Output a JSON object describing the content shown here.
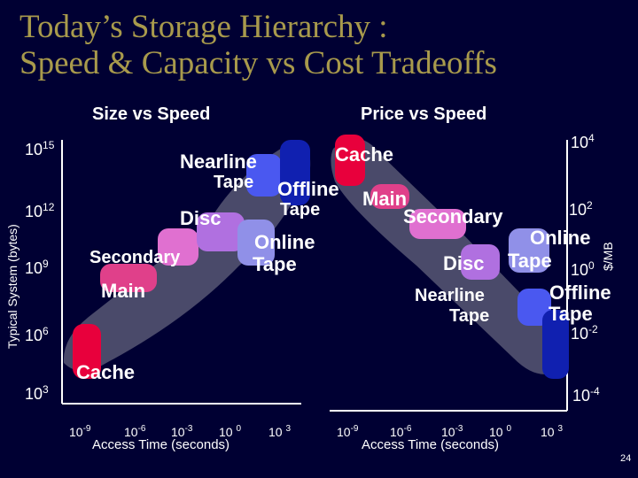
{
  "title": {
    "line1": "Today’s Storage Hierarchy :",
    "line2": "Speed & Capacity  vs Cost Tradeoffs"
  },
  "left_panel": {
    "subtitle": "Size vs Speed",
    "y_axis_label": "Typical System (bytes)",
    "y_ticks": [
      {
        "base": "10",
        "exp": "15"
      },
      {
        "base": "10",
        "exp": "12"
      },
      {
        "base": "10",
        "exp": "9"
      },
      {
        "base": "10",
        "exp": "6"
      },
      {
        "base": "10",
        "exp": "3"
      }
    ],
    "x_ticks": [
      {
        "base": "10",
        "exp": "-9"
      },
      {
        "base": "10",
        "exp": "-6"
      },
      {
        "base": "10",
        "exp": "-3"
      },
      {
        "base": "10 ",
        "exp": "0"
      },
      {
        "base": "10 ",
        "exp": "3"
      }
    ],
    "x_axis_label": "Access  Time (seconds)",
    "labels": {
      "nearline": "Nearline",
      "tape1": "Tape",
      "offline": "Offline",
      "tape2": "Tape",
      "disc": "Disc",
      "online": "Online",
      "tape3": "Tape",
      "secondary": "Secondary",
      "main": "Main",
      "cache": "Cache"
    }
  },
  "right_panel": {
    "subtitle": "Price vs Speed",
    "y_axis_label": "$/MB",
    "y_ticks": [
      {
        "base": "10",
        "exp": "4"
      },
      {
        "base": "10",
        "exp": "2"
      },
      {
        "base": "10",
        "exp": "0"
      },
      {
        "base": "10",
        "exp": "-2"
      },
      {
        "base": "10",
        "exp": "-4"
      }
    ],
    "x_ticks": [
      {
        "base": "10",
        "exp": "-9"
      },
      {
        "base": "10",
        "exp": "-6"
      },
      {
        "base": "10",
        "exp": "-3"
      },
      {
        "base": "10 ",
        "exp": "0"
      },
      {
        "base": "10 ",
        "exp": "3"
      }
    ],
    "x_axis_label": "Access  Time (seconds)",
    "labels": {
      "cache": "Cache",
      "main": "Main",
      "secondary": "Secondary",
      "online": "Online",
      "disc": "Disc",
      "tape1": "Tape",
      "nearline": "Nearline",
      "tape2": "Tape",
      "offline": "Offline",
      "tape3": "Tape"
    }
  },
  "page_number": "24",
  "colors": {
    "background": "#000033",
    "title": "#a89a4c",
    "band": "#4a4a6a",
    "cache": "#e8003c",
    "main": "#e0408a",
    "secondary": "#e070d0",
    "disc": "#b070e0",
    "online_tape": "#9090e8",
    "nearline_tape": "#4a58f0",
    "offline_tape": "#1020b0"
  }
}
